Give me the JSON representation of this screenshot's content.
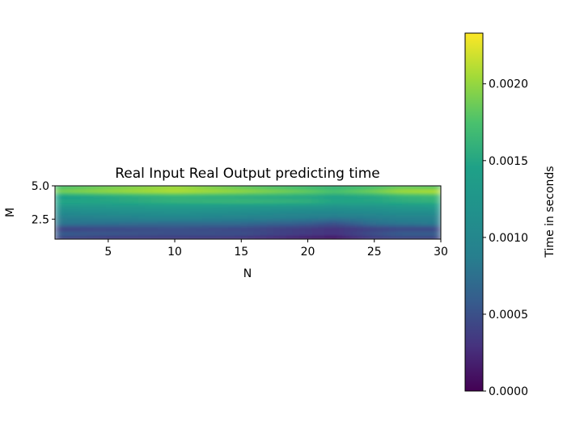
{
  "chart_data": {
    "type": "heatmap",
    "title": "Real Input Real Output predicting time",
    "xlabel": "N",
    "ylabel": "M",
    "xlim": [
      1,
      30
    ],
    "ylim": [
      1,
      5
    ],
    "x_ticks": [
      5,
      10,
      15,
      20,
      25,
      30
    ],
    "x_tick_labels": [
      "5",
      "10",
      "15",
      "20",
      "25",
      "30"
    ],
    "y_ticks": [
      2.5,
      5.0
    ],
    "y_tick_labels": [
      "2.5",
      "5.0"
    ],
    "colormap": "viridis",
    "colorbar": {
      "label": "Time in seconds",
      "min": 0.0,
      "max": 0.00233,
      "ticks": [
        0.0,
        0.0005,
        0.001,
        0.0015,
        0.002
      ],
      "tick_labels": [
        "0.0000",
        "0.0005",
        "0.0010",
        "0.0015",
        "0.0020"
      ]
    },
    "x": [
      1,
      5,
      10,
      15,
      20,
      22,
      25,
      27,
      30
    ],
    "y": [
      1.0,
      1.4,
      1.8,
      2.2,
      2.6,
      3.0,
      3.4,
      3.8,
      4.2,
      4.6,
      5.0
    ],
    "z": [
      [
        0.00035,
        0.0003,
        0.0003,
        0.00025,
        0.0001,
        5e-05,
        0.0003,
        0.00035,
        0.00035
      ],
      [
        0.0006,
        0.00055,
        0.0005,
        0.0005,
        0.00035,
        0.0003,
        0.0005,
        0.0006,
        0.0006
      ],
      [
        0.0004,
        0.00045,
        0.0005,
        0.00045,
        0.00035,
        0.0003,
        0.0004,
        0.00045,
        0.00045
      ],
      [
        0.0008,
        0.00075,
        0.0007,
        0.0007,
        0.0006,
        0.0005,
        0.00075,
        0.0008,
        0.00085
      ],
      [
        0.00085,
        0.0009,
        0.00095,
        0.0009,
        0.00085,
        0.0008,
        0.00085,
        0.0009,
        0.0009
      ],
      [
        0.00105,
        0.0011,
        0.00115,
        0.0011,
        0.001,
        0.001,
        0.00105,
        0.0011,
        0.0011
      ],
      [
        0.0012,
        0.00125,
        0.0013,
        0.00125,
        0.0012,
        0.00115,
        0.0012,
        0.00125,
        0.0013
      ],
      [
        0.0015,
        0.0015,
        0.0016,
        0.00165,
        0.0016,
        0.0015,
        0.0015,
        0.00155,
        0.0016
      ],
      [
        0.0014,
        0.0015,
        0.0016,
        0.00155,
        0.0015,
        0.00145,
        0.0015,
        0.0016,
        0.00165
      ],
      [
        0.0019,
        0.002,
        0.0021,
        0.002,
        0.00185,
        0.00175,
        0.0019,
        0.00205,
        0.0021
      ],
      [
        0.0017,
        0.00185,
        0.002,
        0.0018,
        0.00165,
        0.0016,
        0.0017,
        0.0018,
        0.00175
      ]
    ]
  }
}
